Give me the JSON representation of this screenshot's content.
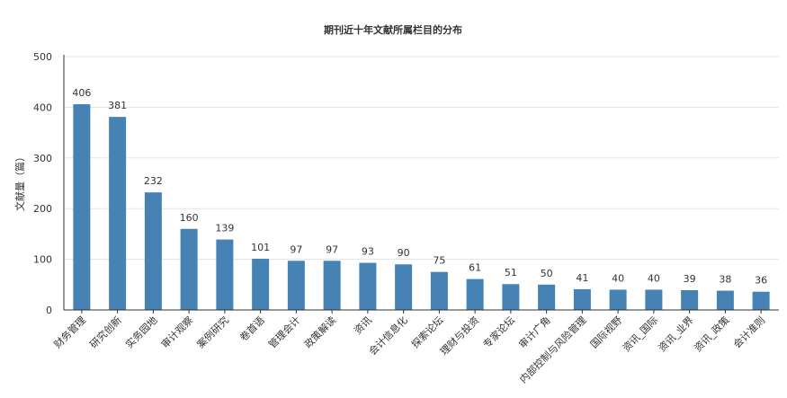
{
  "chart_data": {
    "type": "bar",
    "title": "期刊近十年文献所属栏目的分布",
    "ylabel": "文献量（篇）",
    "xlabel": "",
    "ylim": [
      0,
      500
    ],
    "yticks": [
      0,
      100,
      200,
      300,
      400,
      500
    ],
    "grid": true,
    "legend": "none",
    "categories": [
      "财务管理",
      "研究创新",
      "实务园地",
      "审计观察",
      "案例研究",
      "卷首语",
      "管理会计",
      "政策解读",
      "资讯",
      "会计信息化",
      "探索论坛",
      "理财与投资",
      "专家论坛",
      "审计广角",
      "内部控制与风险管理",
      "国际视野",
      "资讯_国际",
      "资讯_业界",
      "资讯_政策",
      "会计准则"
    ],
    "values": [
      406,
      381,
      232,
      160,
      139,
      101,
      97,
      97,
      93,
      90,
      75,
      61,
      51,
      50,
      41,
      40,
      40,
      39,
      38,
      36
    ],
    "colors": {
      "bar": "#4682b4",
      "grid": "#e3e3e3",
      "axis": "#333333",
      "text": "#333333"
    }
  }
}
